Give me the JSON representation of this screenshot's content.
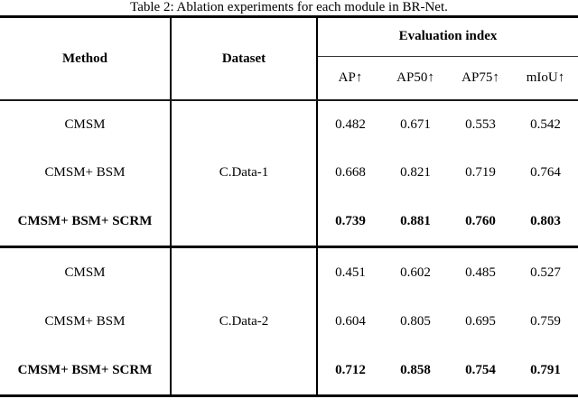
{
  "title": "Table 2: Ablation experiments for each module in BR-Net.",
  "table": {
    "header": {
      "method": "Method",
      "dataset": "Dataset",
      "eval_group": "Evaluation index"
    },
    "metrics": [
      "AP↑",
      "AP50↑",
      "AP75↑",
      "mIoU↑"
    ],
    "groups": [
      {
        "dataset": "C.Data-1",
        "rows": [
          {
            "method": "CMSM",
            "values": [
              "0.482",
              "0.671",
              "0.553",
              "0.542"
            ],
            "bold": false
          },
          {
            "method": "CMSM+ BSM",
            "values": [
              "0.668",
              "0.821",
              "0.719",
              "0.764"
            ],
            "bold": false
          },
          {
            "method": "CMSM+ BSM+ SCRM",
            "values": [
              "0.739",
              "0.881",
              "0.760",
              "0.803"
            ],
            "bold": true
          }
        ]
      },
      {
        "dataset": "C.Data-2",
        "rows": [
          {
            "method": "CMSM",
            "values": [
              "0.451",
              "0.602",
              "0.485",
              "0.527"
            ],
            "bold": false
          },
          {
            "method": "CMSM+ BSM",
            "values": [
              "0.604",
              "0.805",
              "0.695",
              "0.759"
            ],
            "bold": false
          },
          {
            "method": "CMSM+ BSM+ SCRM",
            "values": [
              "0.712",
              "0.858",
              "0.754",
              "0.791"
            ],
            "bold": true
          }
        ]
      }
    ]
  },
  "colors": {
    "text": "#000000",
    "rule": "#000000",
    "background": "#ffffff"
  }
}
